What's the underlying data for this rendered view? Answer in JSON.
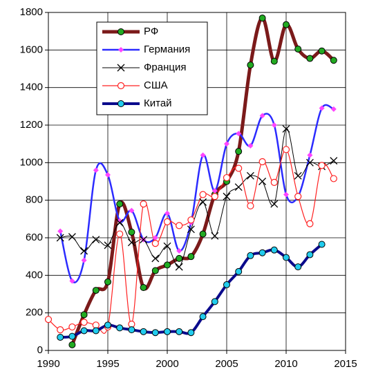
{
  "chart_data": {
    "type": "line",
    "xlim": [
      1990,
      2015
    ],
    "xticks": [
      1990,
      1995,
      2000,
      2005,
      2010,
      2015
    ],
    "ylim": [
      0,
      1800
    ],
    "yticks": [
      0,
      200,
      400,
      600,
      800,
      1000,
      1200,
      1400,
      1600,
      1800
    ],
    "grid": true,
    "legend": "upper left",
    "smooth": true,
    "series": [
      {
        "name": "РФ",
        "color": "#7b1a1a",
        "marker": "circle",
        "marker_color": "#22aa22",
        "x": [
          1992,
          1993,
          1994,
          1995,
          1996,
          1997,
          1998,
          1999,
          2000,
          2001,
          2002,
          2003,
          2004,
          2005,
          2006,
          2007,
          2008,
          2009,
          2010,
          2011,
          2012,
          2013,
          2014
        ],
        "values": [
          30,
          190,
          320,
          365,
          780,
          630,
          335,
          425,
          455,
          490,
          500,
          620,
          830,
          900,
          1060,
          1520,
          1770,
          1540,
          1735,
          1605,
          1555,
          1595,
          1545
        ]
      },
      {
        "name": "Германия",
        "color": "#2b2bff",
        "marker": "diamond",
        "marker_color": "#ff44ff",
        "x": [
          1991,
          1992,
          1993,
          1994,
          1995,
          1996,
          1997,
          1998,
          1999,
          2000,
          2001,
          2002,
          2003,
          2004,
          2005,
          2006,
          2007,
          2008,
          2009,
          2010,
          2011,
          2012,
          2013,
          2014
        ],
        "values": [
          635,
          370,
          480,
          960,
          935,
          690,
          745,
          590,
          600,
          730,
          530,
          680,
          1040,
          850,
          1100,
          1155,
          1090,
          1250,
          1200,
          830,
          820,
          1040,
          1290,
          1285
        ]
      },
      {
        "name": "Франция",
        "color": "#000000",
        "marker": "x",
        "marker_color": "#000000",
        "x": [
          1991,
          1992,
          1993,
          1994,
          1995,
          1996,
          1997,
          1998,
          1999,
          2000,
          2001,
          2002,
          2003,
          2004,
          2005,
          2006,
          2007,
          2008,
          2009,
          2010,
          2011,
          2012,
          2013,
          2014
        ],
        "values": [
          600,
          605,
          530,
          590,
          560,
          680,
          575,
          590,
          490,
          555,
          445,
          645,
          790,
          610,
          820,
          870,
          930,
          900,
          780,
          1180,
          930,
          1000,
          980,
          1010
        ]
      },
      {
        "name": "США",
        "color": "#ff2020",
        "marker": "open-circle",
        "marker_color": "#ff2020",
        "x": [
          1990,
          1991,
          1992,
          1993,
          1994,
          1995,
          1996,
          1997,
          1998,
          1999,
          2000,
          2001,
          2002,
          2003,
          2004,
          2005,
          2006,
          2007,
          2008,
          2009,
          2010,
          2011,
          2012,
          2013,
          2014
        ],
        "values": [
          165,
          110,
          125,
          150,
          135,
          125,
          620,
          140,
          780,
          570,
          685,
          665,
          695,
          830,
          820,
          920,
          970,
          770,
          1005,
          895,
          1070,
          820,
          675,
          985,
          915
        ]
      },
      {
        "name": "Китай",
        "color": "#0a0a8c",
        "marker": "circle",
        "marker_color": "#22ccee",
        "x": [
          1991,
          1992,
          1993,
          1994,
          1995,
          1996,
          1997,
          1998,
          1999,
          2000,
          2001,
          2002,
          2003,
          2004,
          2005,
          2006,
          2007,
          2008,
          2009,
          2010,
          2011,
          2012,
          2013
        ],
        "values": [
          70,
          75,
          105,
          105,
          135,
          120,
          110,
          100,
          95,
          100,
          100,
          95,
          180,
          260,
          350,
          420,
          505,
          520,
          535,
          495,
          445,
          510,
          565
        ]
      }
    ]
  }
}
